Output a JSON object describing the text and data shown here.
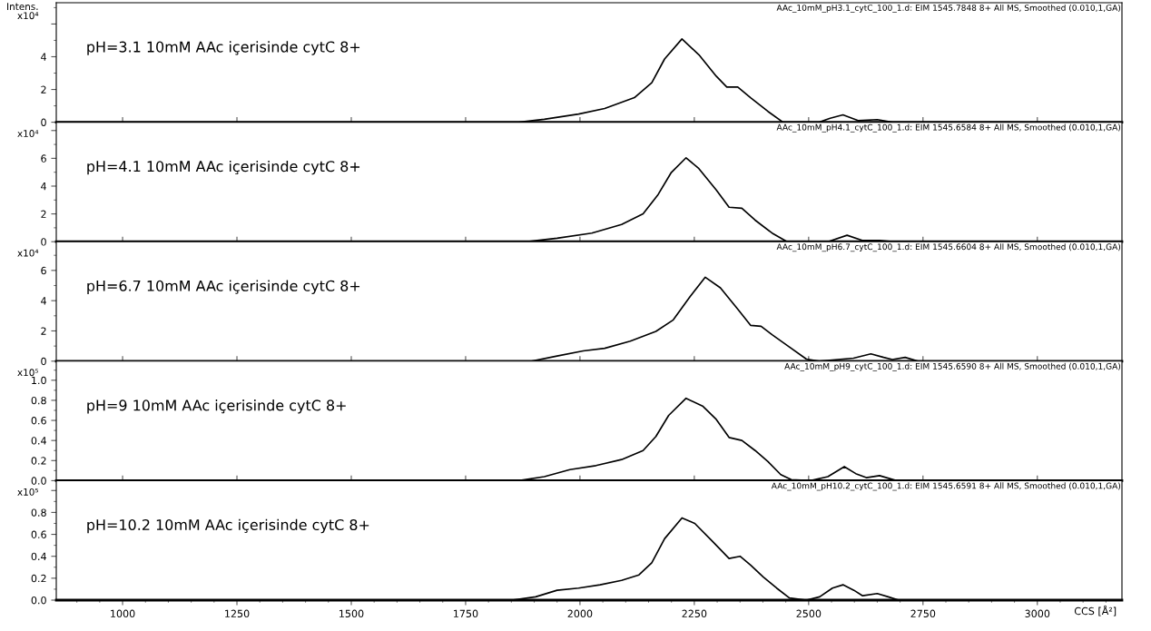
{
  "chart_data": [
    {
      "type": "line",
      "title": "AAc_10mM_pH3.1_cytC_100_1.d: EIM 1545.7848 8+ All MS, Smoothed (0.010,1,GA)",
      "ylabel": "Intens.\nx10⁴",
      "annotations": [
        "pH=3.1 10mM AAc içerisinde cytC 8+"
      ],
      "color": "#000000",
      "tick_labels": "y",
      "x": [
        860,
        1866,
        1922,
        1997,
        2054,
        2119,
        2157,
        2185,
        2223,
        2260,
        2298,
        2321,
        2345,
        2373,
        2411,
        2444,
        2523,
        2547,
        2575,
        2608,
        2650,
        2683,
        3180
      ],
      "values": [
        0,
        0,
        0.18,
        0.5,
        0.84,
        1.5,
        2.41,
        3.86,
        5.09,
        4.12,
        2.81,
        2.15,
        2.15,
        1.5,
        0.66,
        0,
        0,
        0.24,
        0.45,
        0.1,
        0.16,
        0,
        0
      ],
      "xlim": [
        855,
        3185
      ],
      "xticks": [
        1000,
        1250,
        1500,
        1750,
        2000,
        2250,
        2500,
        2750,
        3000
      ],
      "ylim": [
        0,
        7.3
      ],
      "yticks": [
        0,
        2,
        4,
        {
          "value": 6,
          "label": null
        }
      ]
    },
    {
      "type": "line",
      "title": "AAc_10mM_pH4.1_cytC_100_1.d: EIM 1545.6584 8+ All MS, Smoothed (0.010,1,GA)",
      "ylabel": "x10⁴",
      "annotations": [
        "pH=4.1 10mM AAc içerisinde cytC 8+"
      ],
      "color": "#000000",
      "tick_labels": "y",
      "x": [
        860,
        1885,
        1950,
        2026,
        2091,
        2138,
        2171,
        2199,
        2232,
        2260,
        2298,
        2326,
        2354,
        2383,
        2420,
        2453,
        2542,
        2584,
        2617,
        2655,
        2683,
        3180
      ],
      "values": [
        0,
        0,
        0.25,
        0.62,
        1.24,
        2.0,
        3.4,
        4.95,
        6.04,
        5.26,
        3.72,
        2.48,
        2.41,
        1.55,
        0.62,
        0,
        0,
        0.46,
        0.09,
        0.09,
        0,
        0
      ],
      "xlim": [
        855,
        3185
      ],
      "xticks": [
        1000,
        1250,
        1500,
        1750,
        2000,
        2250,
        2500,
        2750,
        3000
      ],
      "ylim": [
        0,
        8.6
      ],
      "yticks": [
        0,
        2,
        4,
        6,
        {
          "value": 8,
          "label": null
        }
      ]
    },
    {
      "type": "line",
      "title": "AAc_10mM_pH6.7_cytC_100_1.d: EIM 1545.6604 8+ All MS, Smoothed (0.010,1,GA)",
      "ylabel": "x10⁴",
      "annotations": [
        "pH=6.7 10mM AAc içerisinde cytC 8+"
      ],
      "color": "#000000",
      "tick_labels": "y",
      "x": [
        860,
        1894,
        1950,
        2007,
        2054,
        2110,
        2166,
        2204,
        2241,
        2274,
        2307,
        2345,
        2373,
        2396,
        2420,
        2457,
        2495,
        2523,
        2598,
        2636,
        2664,
        2683,
        2711,
        2739,
        3180
      ],
      "values": [
        0,
        0,
        0.34,
        0.68,
        0.85,
        1.32,
        1.97,
        2.73,
        4.28,
        5.55,
        4.85,
        3.44,
        2.37,
        2.31,
        1.75,
        0.96,
        0.14,
        0,
        0.2,
        0.48,
        0.25,
        0.11,
        0.25,
        0,
        0
      ],
      "xlim": [
        855,
        3185
      ],
      "xticks": [
        1000,
        1250,
        1500,
        1750,
        2000,
        2250,
        2500,
        2750,
        3000
      ],
      "ylim": [
        0,
        7.9
      ],
      "yticks": [
        0,
        2,
        4,
        6
      ]
    },
    {
      "type": "line",
      "title": "AAc_10mM_pH9_cytC_100_1.d: EIM 1545.6590 8+ All MS, Smoothed (0.010,1,GA)",
      "ylabel": "x10⁵",
      "annotations": [
        "pH=9 10mM AAc içerisinde cytC 8+"
      ],
      "color": "#000000",
      "tick_labels": "y",
      "x": [
        860,
        1866,
        1922,
        1978,
        2035,
        2091,
        2138,
        2166,
        2194,
        2232,
        2269,
        2298,
        2326,
        2354,
        2383,
        2411,
        2439,
        2462,
        2504,
        2542,
        2578,
        2603,
        2626,
        2655,
        2692,
        3180
      ],
      "values": [
        0,
        0,
        0.04,
        0.11,
        0.15,
        0.21,
        0.3,
        0.44,
        0.65,
        0.82,
        0.74,
        0.61,
        0.43,
        0.4,
        0.3,
        0.19,
        0.06,
        0.01,
        0,
        0.04,
        0.14,
        0.07,
        0.03,
        0.05,
        0,
        0
      ],
      "xlim": [
        855,
        3185
      ],
      "xticks": [
        1000,
        1250,
        1500,
        1750,
        2000,
        2250,
        2500,
        2750,
        3000
      ],
      "ylim": [
        0,
        1.19
      ],
      "yticks": [
        {
          "value": 0,
          "label": "0.0"
        },
        {
          "value": 0.2,
          "label": "0.2"
        },
        {
          "value": 0.4,
          "label": "0.4"
        },
        {
          "value": 0.6,
          "label": "0.6"
        },
        {
          "value": 0.8,
          "label": "0.8"
        },
        {
          "value": 1.0,
          "label": "1.0"
        }
      ]
    },
    {
      "type": "line",
      "title": "AAc_10mM_pH10.2_cytC_100_1.d: EIM 1545.6591 8+ All MS, Smoothed (0.010,1,GA)",
      "ylabel": "x10⁵",
      "xlabel": "CCS [Å²]",
      "annotations": [
        "pH=10.2 10mM AAc içerisinde cytC 8+"
      ],
      "color": "#000000",
      "x": [
        860,
        1851,
        1903,
        1950,
        1997,
        2044,
        2091,
        2129,
        2157,
        2185,
        2223,
        2251,
        2289,
        2326,
        2350,
        2373,
        2401,
        2430,
        2458,
        2495,
        2524,
        2552,
        2575,
        2599,
        2618,
        2650,
        2674,
        2697,
        3180
      ],
      "values": [
        0,
        0,
        0.03,
        0.09,
        0.11,
        0.14,
        0.18,
        0.23,
        0.34,
        0.56,
        0.75,
        0.7,
        0.54,
        0.38,
        0.4,
        0.32,
        0.21,
        0.11,
        0.02,
        0,
        0.03,
        0.11,
        0.14,
        0.09,
        0.04,
        0.06,
        0.03,
        0,
        0
      ],
      "xlim": [
        855,
        3185
      ],
      "xticks": [
        1000,
        1250,
        1500,
        1750,
        2000,
        2250,
        2500,
        2750,
        3000
      ],
      "ylim": [
        0,
        1.09
      ],
      "yticks": [
        {
          "value": 0,
          "label": "0.0"
        },
        {
          "value": 0.2,
          "label": "0.2"
        },
        {
          "value": 0.4,
          "label": "0.4"
        },
        {
          "value": 0.6,
          "label": "0.6"
        },
        {
          "value": 0.8,
          "label": "0.8"
        },
        {
          "value": 1.0,
          "label": null
        }
      ]
    }
  ]
}
